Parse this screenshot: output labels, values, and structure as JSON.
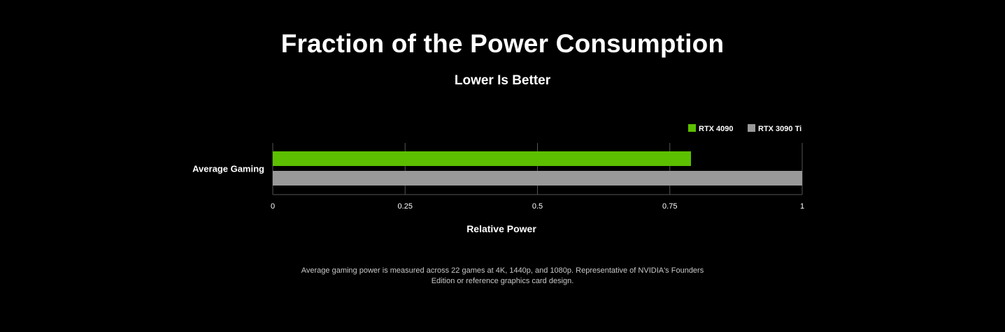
{
  "chart_data": {
    "type": "bar",
    "orientation": "horizontal",
    "title": "Fraction of the Power Consumption",
    "subtitle": "Lower Is Better",
    "categories": [
      "Average Gaming"
    ],
    "series": [
      {
        "name": "RTX 4090",
        "values": [
          0.79
        ],
        "color": "#5cbf00"
      },
      {
        "name": "RTX 3090 Ti",
        "values": [
          1.0
        ],
        "color": "#999999"
      }
    ],
    "xlabel": "Relative Power",
    "ylabel": "",
    "xlim": [
      0,
      1
    ],
    "xticks": [
      0,
      0.25,
      0.5,
      0.75,
      1
    ],
    "xtick_labels": [
      "0",
      "0.25",
      "0.5",
      "0.75",
      "1"
    ],
    "grid": "vertical",
    "legend_position": "top-right"
  },
  "footnote": {
    "line1": "Average gaming power is measured across 22 games at 4K, 1440p, and 1080p. Representative of NVIDIA's Founders",
    "line2": "Edition or reference graphics card design."
  },
  "colors": {
    "background": "#000000",
    "text": "#ffffff",
    "gridline": "#555555",
    "footnote": "#c8c8c8"
  }
}
